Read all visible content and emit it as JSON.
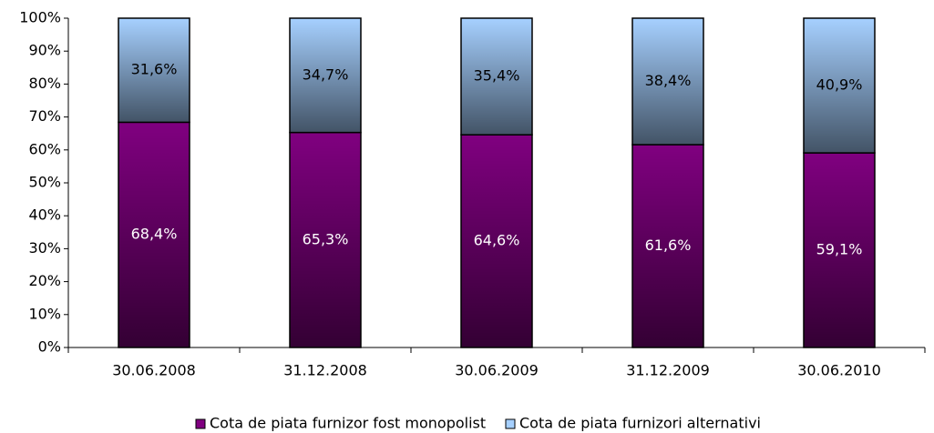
{
  "chart_data": {
    "type": "stacked_bar",
    "categories": [
      "30.06.2008",
      "31.12.2008",
      "30.06.2009",
      "31.12.2009",
      "30.06.2010"
    ],
    "series": [
      {
        "name": "Cota de piata furnizor fost monopolist",
        "color": "#800080",
        "values": [
          68.4,
          65.3,
          64.6,
          61.6,
          59.1
        ],
        "value_labels": [
          "68,4%",
          "65,3%",
          "64,6%",
          "61,6%",
          "59,1%"
        ]
      },
      {
        "name": "Cota de piata furnizori alternativi",
        "color": "#a6d0ff",
        "values": [
          31.6,
          34.7,
          35.4,
          38.4,
          40.9
        ],
        "value_labels": [
          "31,6%",
          "34,7%",
          "35,4%",
          "38,4%",
          "40,9%"
        ]
      }
    ],
    "ylim": [
      0,
      100
    ],
    "yticks": [
      {
        "value": 0,
        "label": "0%"
      },
      {
        "value": 10,
        "label": "10%"
      },
      {
        "value": 20,
        "label": "20%"
      },
      {
        "value": 30,
        "label": "30%"
      },
      {
        "value": 40,
        "label": "40%"
      },
      {
        "value": 50,
        "label": "50%"
      },
      {
        "value": 60,
        "label": "60%"
      },
      {
        "value": 70,
        "label": "70%"
      },
      {
        "value": 80,
        "label": "80%"
      },
      {
        "value": 90,
        "label": "90%"
      },
      {
        "value": 100,
        "label": "100%"
      }
    ],
    "legend": "bottom"
  }
}
